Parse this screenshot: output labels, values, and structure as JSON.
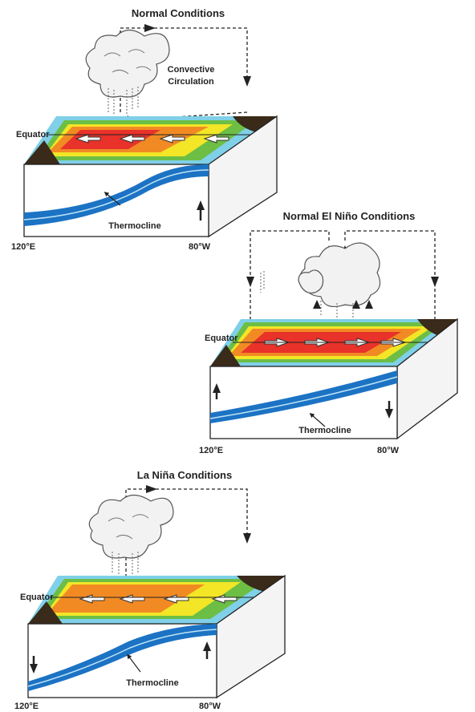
{
  "panels": [
    {
      "title": "Normal Conditions",
      "circulation_label_1": "Convective",
      "circulation_label_2": "Circulation",
      "equator_label": "Equator",
      "thermocline_label": "Thermocline",
      "west_label": "120°E",
      "east_label": "80°W"
    },
    {
      "title": "Normal El Niño Conditions",
      "equator_label": "Equator",
      "thermocline_label": "Thermocline",
      "west_label": "120°E",
      "east_label": "80°W"
    },
    {
      "title": "La Niña Conditions",
      "equator_label": "Equator",
      "thermocline_label": "Thermocline",
      "west_label": "120°E",
      "east_label": "80°W"
    }
  ],
  "colors": {
    "warm_core": "#e8322a",
    "warm": "#f28a24",
    "mild": "#f2e627",
    "cool": "#6cbe45",
    "cold_surface": "#7fd0e8",
    "deep_water": "#1c73c4",
    "land": "#3a2a1a",
    "cloud": "#eeeeee",
    "line": "#222222"
  }
}
